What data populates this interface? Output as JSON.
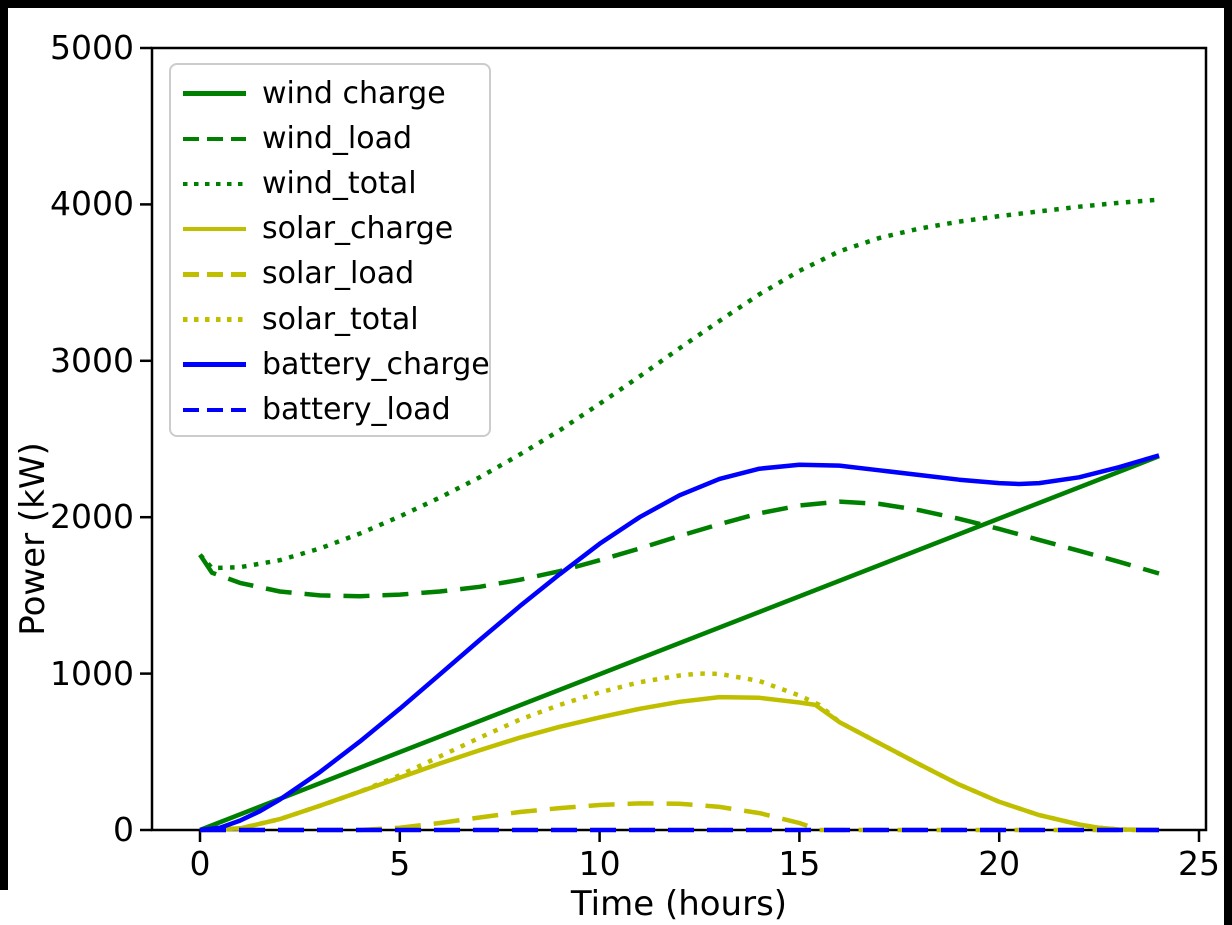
{
  "figure": {
    "xlabel": "Time (hours)",
    "ylabel": "Power (kW)"
  },
  "chart_data": {
    "type": "line",
    "title": "",
    "xlabel": "Time (hours)",
    "ylabel": "Power (kW)",
    "xlim": [
      0,
      25
    ],
    "ylim": [
      0,
      5000
    ],
    "x_ticks": [
      "0",
      "5",
      "10",
      "15",
      "20",
      "25"
    ],
    "x_tick_values": [
      0,
      5,
      10,
      15,
      20,
      25
    ],
    "y_ticks": [
      "0",
      "1000",
      "2000",
      "3000",
      "4000",
      "5000"
    ],
    "y_tick_values": [
      0,
      1000,
      2000,
      3000,
      4000,
      5000
    ],
    "grid": false,
    "legend_position": "upper left",
    "axis_color": "#000000",
    "series": [
      {
        "name": "wind charge",
        "color": "#008000",
        "style": "solid",
        "points": [
          [
            0,
            0
          ],
          [
            24,
            2390
          ]
        ]
      },
      {
        "name": "wind_load",
        "color": "#008000",
        "style": "dashed",
        "points": [
          [
            0,
            1760
          ],
          [
            0.3,
            1645
          ],
          [
            1,
            1580
          ],
          [
            2,
            1525
          ],
          [
            3,
            1500
          ],
          [
            4,
            1495
          ],
          [
            5,
            1505
          ],
          [
            6,
            1525
          ],
          [
            7,
            1555
          ],
          [
            8,
            1600
          ],
          [
            9,
            1655
          ],
          [
            10,
            1725
          ],
          [
            11,
            1800
          ],
          [
            12,
            1880
          ],
          [
            13,
            1955
          ],
          [
            14,
            2025
          ],
          [
            15,
            2075
          ],
          [
            16,
            2100
          ],
          [
            17,
            2085
          ],
          [
            18,
            2045
          ],
          [
            19,
            1990
          ],
          [
            20,
            1925
          ],
          [
            21,
            1855
          ],
          [
            22,
            1785
          ],
          [
            23,
            1715
          ],
          [
            24,
            1640
          ]
        ]
      },
      {
        "name": "wind_total",
        "color": "#008000",
        "style": "dotted",
        "points": [
          [
            0,
            1760
          ],
          [
            0.3,
            1675
          ],
          [
            1,
            1680
          ],
          [
            2,
            1725
          ],
          [
            3,
            1800
          ],
          [
            4,
            1895
          ],
          [
            5,
            2005
          ],
          [
            6,
            2125
          ],
          [
            7,
            2255
          ],
          [
            8,
            2400
          ],
          [
            9,
            2555
          ],
          [
            10,
            2725
          ],
          [
            11,
            2900
          ],
          [
            12,
            3080
          ],
          [
            13,
            3255
          ],
          [
            14,
            3425
          ],
          [
            15,
            3575
          ],
          [
            16,
            3700
          ],
          [
            17,
            3785
          ],
          [
            18,
            3845
          ],
          [
            19,
            3890
          ],
          [
            20,
            3925
          ],
          [
            21,
            3955
          ],
          [
            22,
            3985
          ],
          [
            23,
            4010
          ],
          [
            24,
            4030
          ]
        ]
      },
      {
        "name": "solar_charge",
        "color": "#bfbf00",
        "style": "solid",
        "points": [
          [
            0,
            0
          ],
          [
            1,
            10
          ],
          [
            2,
            70
          ],
          [
            3,
            155
          ],
          [
            4,
            245
          ],
          [
            5,
            335
          ],
          [
            6,
            425
          ],
          [
            7,
            510
          ],
          [
            8,
            590
          ],
          [
            9,
            660
          ],
          [
            10,
            720
          ],
          [
            11,
            775
          ],
          [
            12,
            820
          ],
          [
            13,
            850
          ],
          [
            14,
            845
          ],
          [
            15,
            815
          ],
          [
            15.4,
            800
          ],
          [
            16,
            690
          ],
          [
            17,
            555
          ],
          [
            18,
            420
          ],
          [
            19,
            290
          ],
          [
            20,
            180
          ],
          [
            21,
            95
          ],
          [
            22,
            35
          ],
          [
            22.5,
            14
          ],
          [
            23,
            3
          ],
          [
            24,
            0
          ]
        ]
      },
      {
        "name": "solar_load",
        "color": "#bfbf00",
        "style": "dashed",
        "points": [
          [
            0,
            0
          ],
          [
            4,
            0
          ],
          [
            5,
            15
          ],
          [
            6,
            45
          ],
          [
            7,
            80
          ],
          [
            8,
            115
          ],
          [
            9,
            140
          ],
          [
            10,
            160
          ],
          [
            11,
            170
          ],
          [
            12,
            168
          ],
          [
            13,
            148
          ],
          [
            14,
            108
          ],
          [
            15,
            45
          ],
          [
            15.5,
            0
          ],
          [
            24,
            0
          ]
        ]
      },
      {
        "name": "solar_total",
        "color": "#bfbf00",
        "style": "dotted",
        "points": [
          [
            0,
            0
          ],
          [
            1,
            10
          ],
          [
            2,
            70
          ],
          [
            3,
            155
          ],
          [
            4,
            245
          ],
          [
            5,
            350
          ],
          [
            6,
            470
          ],
          [
            7,
            590
          ],
          [
            8,
            705
          ],
          [
            9,
            800
          ],
          [
            10,
            880
          ],
          [
            11,
            945
          ],
          [
            12,
            988
          ],
          [
            12.5,
            1000
          ],
          [
            13,
            998
          ],
          [
            14,
            953
          ],
          [
            15,
            860
          ],
          [
            15.5,
            800
          ],
          [
            16,
            690
          ],
          [
            17,
            555
          ],
          [
            18,
            420
          ],
          [
            19,
            290
          ],
          [
            20,
            180
          ],
          [
            21,
            95
          ],
          [
            22,
            35
          ],
          [
            22.5,
            14
          ],
          [
            23,
            3
          ],
          [
            24,
            0
          ]
        ]
      },
      {
        "name": "battery_charge",
        "color": "#0000ff",
        "style": "solid",
        "points": [
          [
            0,
            0
          ],
          [
            0.5,
            15
          ],
          [
            1,
            60
          ],
          [
            1.5,
            120
          ],
          [
            2,
            195
          ],
          [
            3,
            370
          ],
          [
            4,
            565
          ],
          [
            5,
            775
          ],
          [
            6,
            995
          ],
          [
            7,
            1215
          ],
          [
            8,
            1430
          ],
          [
            9,
            1635
          ],
          [
            10,
            1830
          ],
          [
            11,
            2000
          ],
          [
            12,
            2140
          ],
          [
            13,
            2245
          ],
          [
            14,
            2310
          ],
          [
            15,
            2335
          ],
          [
            16,
            2330
          ],
          [
            17,
            2300
          ],
          [
            18,
            2270
          ],
          [
            19,
            2240
          ],
          [
            20,
            2218
          ],
          [
            20.5,
            2212
          ],
          [
            21,
            2218
          ],
          [
            22,
            2255
          ],
          [
            23,
            2320
          ],
          [
            24,
            2395
          ]
        ]
      },
      {
        "name": "battery_load",
        "color": "#0000ff",
        "style": "dashed",
        "points": [
          [
            0,
            0
          ],
          [
            24,
            0
          ]
        ]
      }
    ]
  }
}
